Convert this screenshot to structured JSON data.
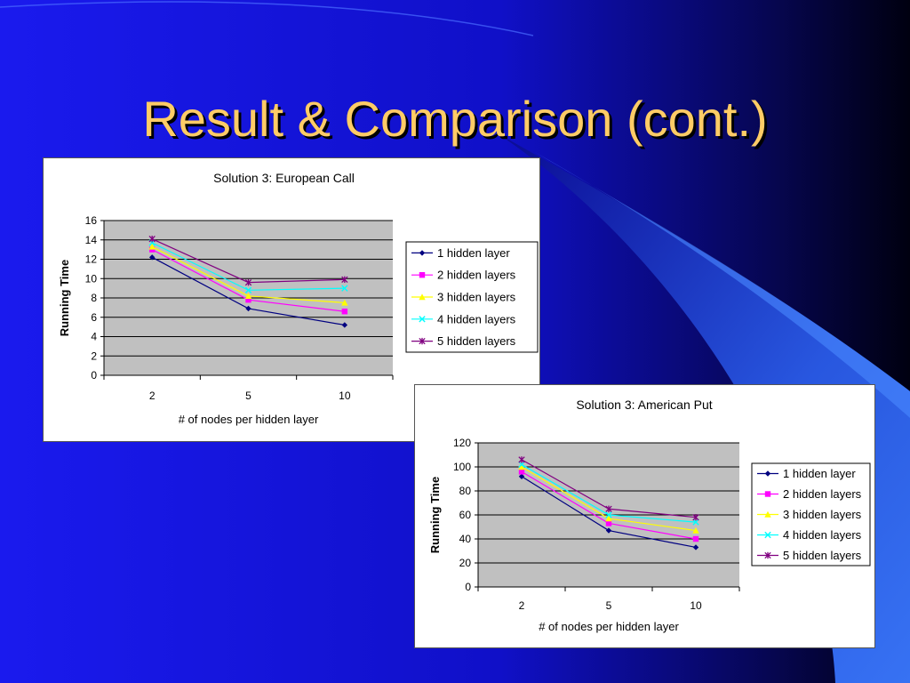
{
  "slide": {
    "title": "Result & Comparison (cont.)"
  },
  "colors": {
    "background": "#1414e0",
    "title": "#ffcc66",
    "plot_area": "#c0c0c0"
  },
  "chart_data": [
    {
      "type": "line",
      "title": "Solution 3: European Call",
      "xlabel": "# of nodes per hidden layer",
      "ylabel": "Running Time",
      "categories": [
        "2",
        "5",
        "10"
      ],
      "ylim": [
        0,
        16
      ],
      "yticks": [
        0,
        2,
        4,
        6,
        8,
        10,
        12,
        14,
        16
      ],
      "grid": true,
      "legend": "right",
      "series": [
        {
          "name": "1 hidden layer",
          "values": [
            12.2,
            6.9,
            5.2
          ],
          "color": "#000080",
          "marker": "diamond"
        },
        {
          "name": "2 hidden layers",
          "values": [
            13.0,
            7.8,
            6.6
          ],
          "color": "#ff00ff",
          "marker": "square"
        },
        {
          "name": "3 hidden layers",
          "values": [
            13.3,
            8.2,
            7.5
          ],
          "color": "#ffff00",
          "marker": "triangle"
        },
        {
          "name": "4 hidden layers",
          "values": [
            13.7,
            8.8,
            9.0
          ],
          "color": "#00ffff",
          "marker": "x"
        },
        {
          "name": "5 hidden layers",
          "values": [
            14.1,
            9.6,
            9.9
          ],
          "color": "#800080",
          "marker": "star"
        }
      ]
    },
    {
      "type": "line",
      "title": "Solution 3: American Put",
      "xlabel": "# of nodes per hidden layer",
      "ylabel": "Running Time",
      "categories": [
        "2",
        "5",
        "10"
      ],
      "ylim": [
        0,
        120
      ],
      "yticks": [
        0,
        20,
        40,
        60,
        80,
        100,
        120
      ],
      "grid": true,
      "legend": "right",
      "series": [
        {
          "name": "1 hidden layer",
          "values": [
            92,
            47,
            33
          ],
          "color": "#000080",
          "marker": "diamond"
        },
        {
          "name": "2 hidden layers",
          "values": [
            96,
            53,
            40
          ],
          "color": "#ff00ff",
          "marker": "square"
        },
        {
          "name": "3 hidden layers",
          "values": [
            100,
            57,
            47
          ],
          "color": "#ffff00",
          "marker": "triangle"
        },
        {
          "name": "4 hidden layers",
          "values": [
            102,
            60,
            54
          ],
          "color": "#00ffff",
          "marker": "x"
        },
        {
          "name": "5 hidden layers",
          "values": [
            106,
            65,
            58
          ],
          "color": "#800080",
          "marker": "star"
        }
      ]
    }
  ]
}
